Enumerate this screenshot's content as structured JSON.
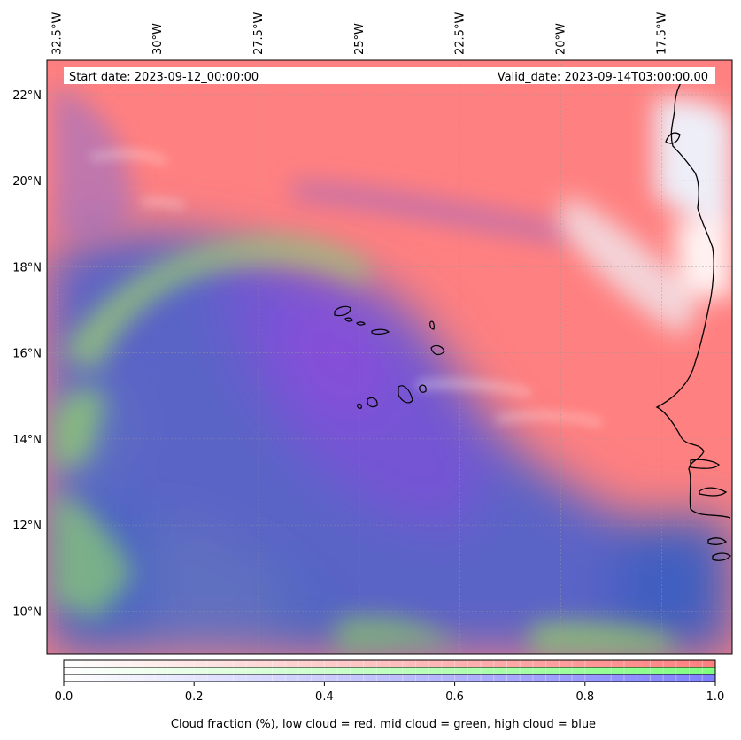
{
  "header": {
    "start_date": "Start date: 2023-09-12_00:00:00",
    "valid_date": "Valid_date: 2023-09-14T03:00:00.00"
  },
  "map": {
    "lon_range": [
      -32.75,
      -15.75
    ],
    "lat_range": [
      9.0,
      22.8
    ],
    "lon_ticks": [
      {
        "value": -32.5,
        "label": "32.5°W"
      },
      {
        "value": -30.0,
        "label": "30°W"
      },
      {
        "value": -27.5,
        "label": "27.5°W"
      },
      {
        "value": -25.0,
        "label": "25°W"
      },
      {
        "value": -22.5,
        "label": "22.5°W"
      },
      {
        "value": -20.0,
        "label": "20°W"
      },
      {
        "value": -17.5,
        "label": "17.5°W"
      }
    ],
    "lat_ticks": [
      {
        "value": 22,
        "label": "22°N"
      },
      {
        "value": 20,
        "label": "20°N"
      },
      {
        "value": 18,
        "label": "18°N"
      },
      {
        "value": 16,
        "label": "16°N"
      },
      {
        "value": 14,
        "label": "14°N"
      },
      {
        "value": 12,
        "label": "12°N"
      },
      {
        "value": 10,
        "label": "10°N"
      }
    ],
    "colors": {
      "low_cloud": "#ff7f7f",
      "mid_cloud": "#8ee87a",
      "high_cloud": "#6f64d8",
      "blend_blue": "#4b63c8",
      "clear": "#ffffff",
      "coast": "#000000"
    }
  },
  "colorbar": {
    "ticks": [
      {
        "value": 0.0,
        "label": "0.0"
      },
      {
        "value": 0.2,
        "label": "0.2"
      },
      {
        "value": 0.4,
        "label": "0.4"
      },
      {
        "value": 0.6,
        "label": "0.6"
      },
      {
        "value": 0.8,
        "label": "0.8"
      },
      {
        "value": 1.0,
        "label": "1.0"
      }
    ],
    "label": "Cloud fraction (%), low cloud = red, mid cloud = green, high cloud = blue"
  }
}
